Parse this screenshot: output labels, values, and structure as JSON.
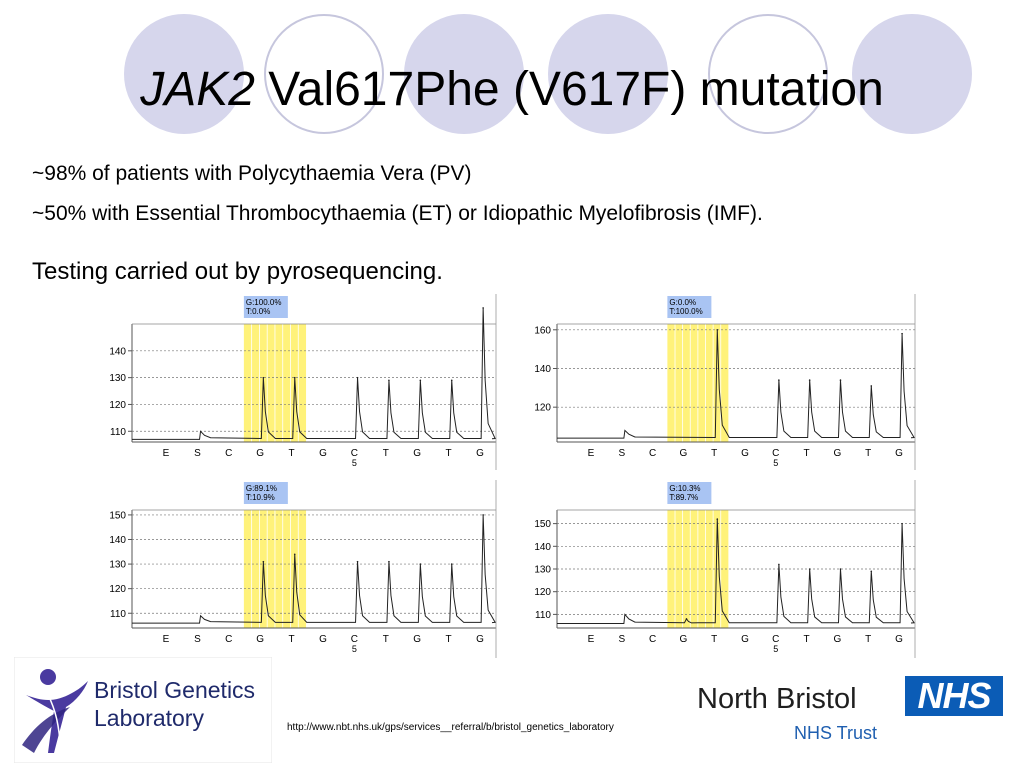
{
  "title": {
    "gene": "JAK2",
    "rest": "Val617Phe (V617F) mutation"
  },
  "bullets": {
    "pv": "~98% of patients with Polycythaemia Vera (PV)",
    "et": "~50% with Essential Thrombocythaemia (ET) or Idiopathic Myelofibrosis (IMF).",
    "testing": "Testing carried out by pyrosequencing."
  },
  "footer": {
    "bgl_line1": "Bristol Genetics",
    "bgl_line2": "Laboratory",
    "url": "http://www.nbt.nhs.uk/gps/services__referral/b/bristol_genetics_laboratory",
    "nb_line1": "North Bristol",
    "nb_line2": "NHS Trust",
    "nhs": "NHS"
  },
  "colors": {
    "highlight": "#fff27a",
    "label_box": "#a9c4f3",
    "trace": "#222222",
    "nhs_blue": "#0b5cb6",
    "bgl_purple": "#4a3aa0"
  },
  "chart_data": [
    {
      "type": "line",
      "title": "",
      "label_lines": [
        "G:100.0%",
        "T:0.0%"
      ],
      "categories": [
        "E",
        "S",
        "C",
        "G",
        "T",
        "G",
        "C",
        "T",
        "G",
        "T",
        "G"
      ],
      "category_sub": {
        "6": "5"
      },
      "highlight_range": [
        3,
        4
      ],
      "ylim": [
        106,
        150
      ],
      "yticks": [
        110,
        120,
        130,
        140
      ],
      "baseline": 107,
      "substrate_step": 3,
      "peaks": [
        0,
        0,
        0,
        130,
        130,
        0,
        130,
        129,
        129,
        129,
        156
      ],
      "grid": true
    },
    {
      "type": "line",
      "title": "",
      "label_lines": [
        "G:0.0%",
        "T:100.0%"
      ],
      "categories": [
        "E",
        "S",
        "C",
        "G",
        "T",
        "G",
        "C",
        "T",
        "G",
        "T",
        "G"
      ],
      "category_sub": {
        "6": "5"
      },
      "highlight_range": [
        3,
        4
      ],
      "ylim": [
        102,
        163
      ],
      "yticks": [
        120,
        140,
        160
      ],
      "baseline": 104,
      "substrate_step": 4,
      "peaks": [
        0,
        0,
        0,
        0,
        160,
        0,
        134,
        134,
        134,
        131,
        158
      ],
      "grid": true
    },
    {
      "type": "line",
      "title": "",
      "label_lines": [
        "G:89.1%",
        "T:10.9%"
      ],
      "categories": [
        "E",
        "S",
        "C",
        "G",
        "T",
        "G",
        "C",
        "T",
        "G",
        "T",
        "G"
      ],
      "category_sub": {
        "6": "5"
      },
      "highlight_range": [
        3,
        4
      ],
      "ylim": [
        104,
        152
      ],
      "yticks": [
        110,
        120,
        130,
        140,
        150
      ],
      "baseline": 106,
      "substrate_step": 3,
      "peaks": [
        0,
        0,
        0,
        131,
        134,
        0,
        131,
        131,
        130,
        130,
        150
      ],
      "grid": true
    },
    {
      "type": "line",
      "title": "",
      "label_lines": [
        "G:10.3%",
        "T:89.7%"
      ],
      "categories": [
        "E",
        "S",
        "C",
        "G",
        "T",
        "G",
        "C",
        "T",
        "G",
        "T",
        "G"
      ],
      "category_sub": {
        "6": "5"
      },
      "highlight_range": [
        3,
        4
      ],
      "ylim": [
        104,
        156
      ],
      "yticks": [
        110,
        120,
        130,
        140,
        150
      ],
      "baseline": 106,
      "substrate_step": 4,
      "peaks": [
        0,
        0,
        0,
        108,
        152,
        0,
        132,
        130,
        130,
        129,
        150
      ],
      "grid": true
    }
  ]
}
